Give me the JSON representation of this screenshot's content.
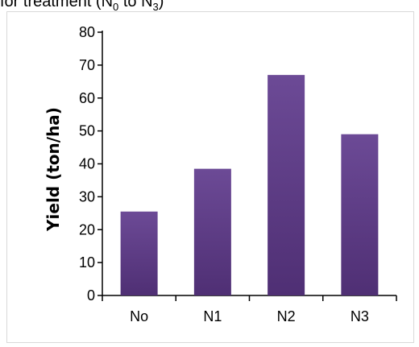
{
  "caption": {
    "prefix": "for treatment  (N",
    "sub1": "0",
    "middle": " to N",
    "sub2": "3",
    "suffix": ")"
  },
  "chart_data": {
    "type": "bar",
    "categories": [
      "No",
      "N1",
      "N2",
      "N3"
    ],
    "values": [
      25.5,
      38.5,
      67,
      49
    ],
    "ylabel": "Yield (ton/ha)",
    "xlabel": "",
    "ylim": [
      0,
      80
    ],
    "yticks": [
      0,
      10,
      20,
      30,
      40,
      50,
      60,
      70,
      80
    ],
    "grid": false,
    "bar_color_top": "#6c4a96",
    "bar_color_bottom": "#4f2f74"
  }
}
